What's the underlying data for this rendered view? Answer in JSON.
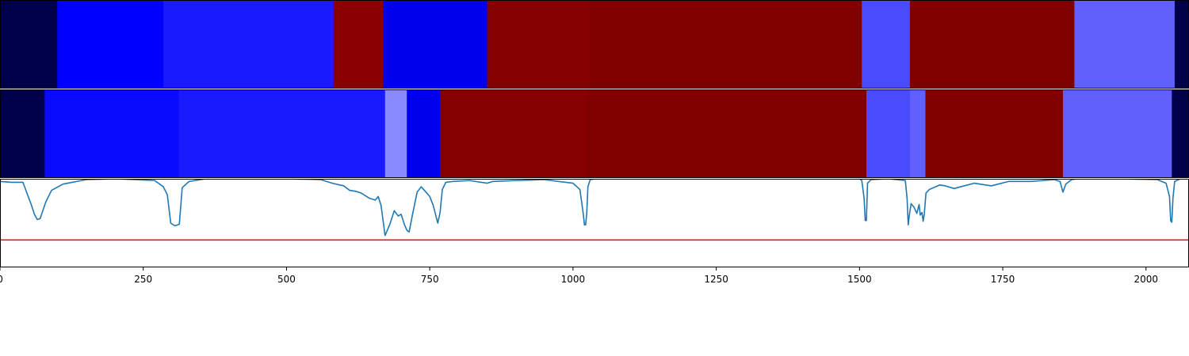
{
  "chart_data": [
    {
      "type": "heatmap",
      "row": 1,
      "segments": [
        {
          "start": 0,
          "end": 100,
          "color": "#00004a"
        },
        {
          "start": 100,
          "end": 285,
          "color": "#0000ff"
        },
        {
          "start": 285,
          "end": 582,
          "color": "#1a1aff"
        },
        {
          "start": 582,
          "end": 669,
          "color": "#8b0000"
        },
        {
          "start": 669,
          "end": 850,
          "color": "#0000ee"
        },
        {
          "start": 850,
          "end": 1030,
          "color": "#850000"
        },
        {
          "start": 1030,
          "end": 1504,
          "color": "#800000"
        },
        {
          "start": 1504,
          "end": 1588,
          "color": "#4a4aff"
        },
        {
          "start": 1588,
          "end": 1875,
          "color": "#800000"
        },
        {
          "start": 1875,
          "end": 2050,
          "color": "#6060ff"
        },
        {
          "start": 2050,
          "end": 2075,
          "color": "#00004a"
        }
      ]
    },
    {
      "type": "heatmap",
      "row": 2,
      "segments": [
        {
          "start": 0,
          "end": 78,
          "color": "#00004a"
        },
        {
          "start": 78,
          "end": 312,
          "color": "#0a0aff"
        },
        {
          "start": 312,
          "end": 672,
          "color": "#1a1aff"
        },
        {
          "start": 672,
          "end": 710,
          "color": "#8a8aff"
        },
        {
          "start": 710,
          "end": 768,
          "color": "#0000ee"
        },
        {
          "start": 768,
          "end": 1025,
          "color": "#850000"
        },
        {
          "start": 1025,
          "end": 1512,
          "color": "#800000"
        },
        {
          "start": 1512,
          "end": 1588,
          "color": "#4a4aff"
        },
        {
          "start": 1588,
          "end": 1615,
          "color": "#6060ff"
        },
        {
          "start": 1615,
          "end": 1855,
          "color": "#800000"
        },
        {
          "start": 1855,
          "end": 2045,
          "color": "#6060ff"
        },
        {
          "start": 2045,
          "end": 2075,
          "color": "#00004a"
        }
      ]
    },
    {
      "type": "line",
      "xlim": [
        0,
        2075
      ],
      "ylim": [
        0,
        1
      ],
      "threshold": {
        "y": 0.31,
        "color": "#e8141d"
      },
      "line_color": "#1f77b4",
      "x": [
        0,
        20,
        40,
        55,
        60,
        65,
        70,
        80,
        90,
        110,
        150,
        200,
        270,
        285,
        292,
        298,
        305,
        310,
        313,
        318,
        330,
        360,
        400,
        500,
        560,
        580,
        600,
        610,
        620,
        630,
        640,
        645,
        655,
        660,
        665,
        672,
        680,
        688,
        695,
        700,
        706,
        710,
        714,
        720,
        728,
        735,
        742,
        750,
        756,
        760,
        764,
        768,
        772,
        778,
        790,
        820,
        850,
        860,
        900,
        950,
        1000,
        1012,
        1018,
        1020,
        1022,
        1024,
        1026,
        1030,
        1040,
        1060,
        1100,
        1300,
        1500,
        1504,
        1508,
        1510,
        1512,
        1514,
        1520,
        1550,
        1580,
        1583,
        1585,
        1587,
        1590,
        1595,
        1600,
        1604,
        1606,
        1609,
        1611,
        1613,
        1616,
        1622,
        1640,
        1650,
        1665,
        1700,
        1730,
        1760,
        1800,
        1840,
        1850,
        1855,
        1860,
        1870,
        1880,
        1950,
        2020,
        2035,
        2041,
        2043,
        2045,
        2047,
        2050,
        2060,
        2075
      ],
      "y": [
        0.97,
        0.96,
        0.96,
        0.7,
        0.6,
        0.54,
        0.55,
        0.74,
        0.87,
        0.94,
        0.99,
        1.0,
        0.98,
        0.91,
        0.82,
        0.5,
        0.47,
        0.48,
        0.49,
        0.9,
        0.97,
        1.0,
        1.0,
        1.0,
        0.99,
        0.95,
        0.92,
        0.87,
        0.86,
        0.84,
        0.8,
        0.78,
        0.76,
        0.8,
        0.7,
        0.36,
        0.48,
        0.64,
        0.58,
        0.6,
        0.48,
        0.42,
        0.4,
        0.6,
        0.85,
        0.91,
        0.86,
        0.8,
        0.7,
        0.6,
        0.5,
        0.62,
        0.88,
        0.96,
        0.97,
        0.98,
        0.95,
        0.97,
        0.98,
        0.99,
        0.95,
        0.88,
        0.6,
        0.48,
        0.48,
        0.61,
        0.91,
        0.99,
        1.0,
        1.0,
        1.0,
        1.0,
        1.0,
        0.98,
        0.78,
        0.53,
        0.53,
        0.95,
        0.99,
        1.0,
        0.98,
        0.78,
        0.48,
        0.59,
        0.72,
        0.68,
        0.61,
        0.71,
        0.59,
        0.62,
        0.52,
        0.6,
        0.84,
        0.88,
        0.93,
        0.92,
        0.89,
        0.95,
        0.92,
        0.97,
        0.97,
        0.99,
        0.97,
        0.85,
        0.94,
        0.99,
        1.0,
        1.0,
        0.99,
        0.95,
        0.8,
        0.53,
        0.51,
        0.78,
        0.97,
        1.0,
        1.0
      ],
      "xticks": [
        0,
        250,
        500,
        750,
        1000,
        1250,
        1500,
        1750,
        2000
      ],
      "xtick_labels": [
        "0",
        "250",
        "500",
        "750",
        "1000",
        "1250",
        "1500",
        "1750",
        "2000"
      ]
    }
  ]
}
